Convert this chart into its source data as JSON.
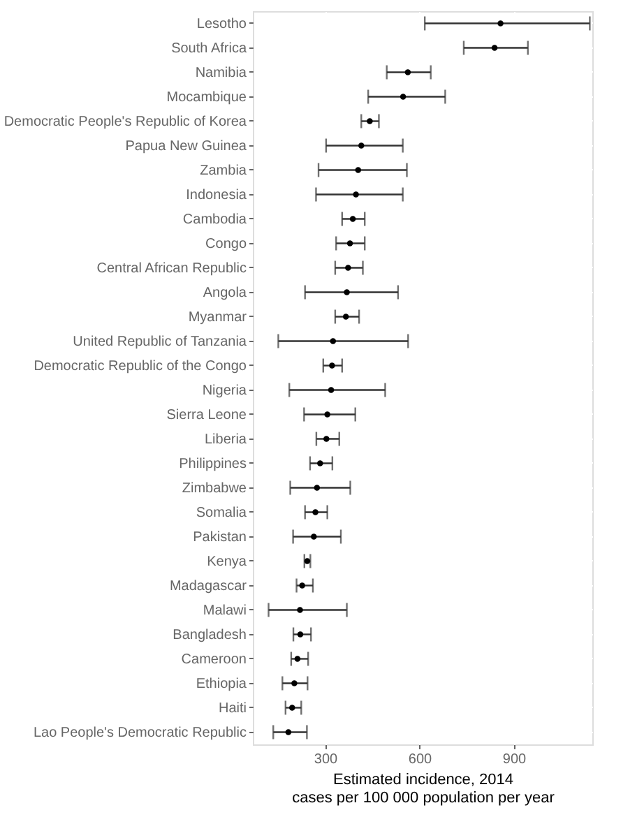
{
  "chart_data": {
    "type": "scatter",
    "orientation": "horizontal",
    "xlabel": "Estimated incidence, 2014\ncases per 100 000 population per year",
    "categories": [
      "Lesotho",
      "South Africa",
      "Namibia",
      "Mocambique",
      "Democratic People's Republic of Korea",
      "Papua New Guinea",
      "Zambia",
      "Indonesia",
      "Cambodia",
      "Congo",
      "Central African Republic",
      "Angola",
      "Myanmar",
      "United Republic of Tanzania",
      "Democratic Republic of the Congo",
      "Nigeria",
      "Sierra Leone",
      "Liberia",
      "Philippines",
      "Zimbabwe",
      "Somalia",
      "Pakistan",
      "Kenya",
      "Madagascar",
      "Malawi",
      "Bangladesh",
      "Cameroon",
      "Ethiopia",
      "Haiti",
      "Lao People's Democratic Republic"
    ],
    "series": [
      {
        "color": "#000000",
        "values": [
          858,
          839,
          563,
          548,
          442,
          415,
          405,
          398,
          388,
          379,
          373,
          369,
          366,
          325,
          322,
          319,
          307,
          304,
          284,
          274,
          269,
          264,
          243,
          227,
          220,
          221,
          212,
          202,
          195,
          183
        ],
        "errors": [
          [
            617,
            1142
          ],
          [
            741,
            945
          ],
          [
            496,
            636
          ],
          [
            437,
            682
          ],
          [
            415,
            471
          ],
          [
            303,
            547
          ],
          [
            279,
            560
          ],
          [
            271,
            547
          ],
          [
            354,
            426
          ],
          [
            335,
            426
          ],
          [
            332,
            420
          ],
          [
            236,
            532
          ],
          [
            332,
            408
          ],
          [
            151,
            564
          ],
          [
            294,
            354
          ],
          [
            186,
            491
          ],
          [
            233,
            396
          ],
          [
            272,
            345
          ],
          [
            252,
            323
          ],
          [
            189,
            380
          ],
          [
            236,
            307
          ],
          [
            198,
            350
          ],
          [
            234,
            253
          ],
          [
            209,
            261
          ],
          [
            120,
            369
          ],
          [
            199,
            255
          ],
          [
            192,
            246
          ],
          [
            164,
            244
          ],
          [
            174,
            224
          ],
          [
            135,
            242
          ]
        ]
      }
    ],
    "xlim": [
      70,
      1150
    ],
    "xticks": [
      300,
      600,
      900
    ],
    "grid": true,
    "marker": "circle"
  }
}
